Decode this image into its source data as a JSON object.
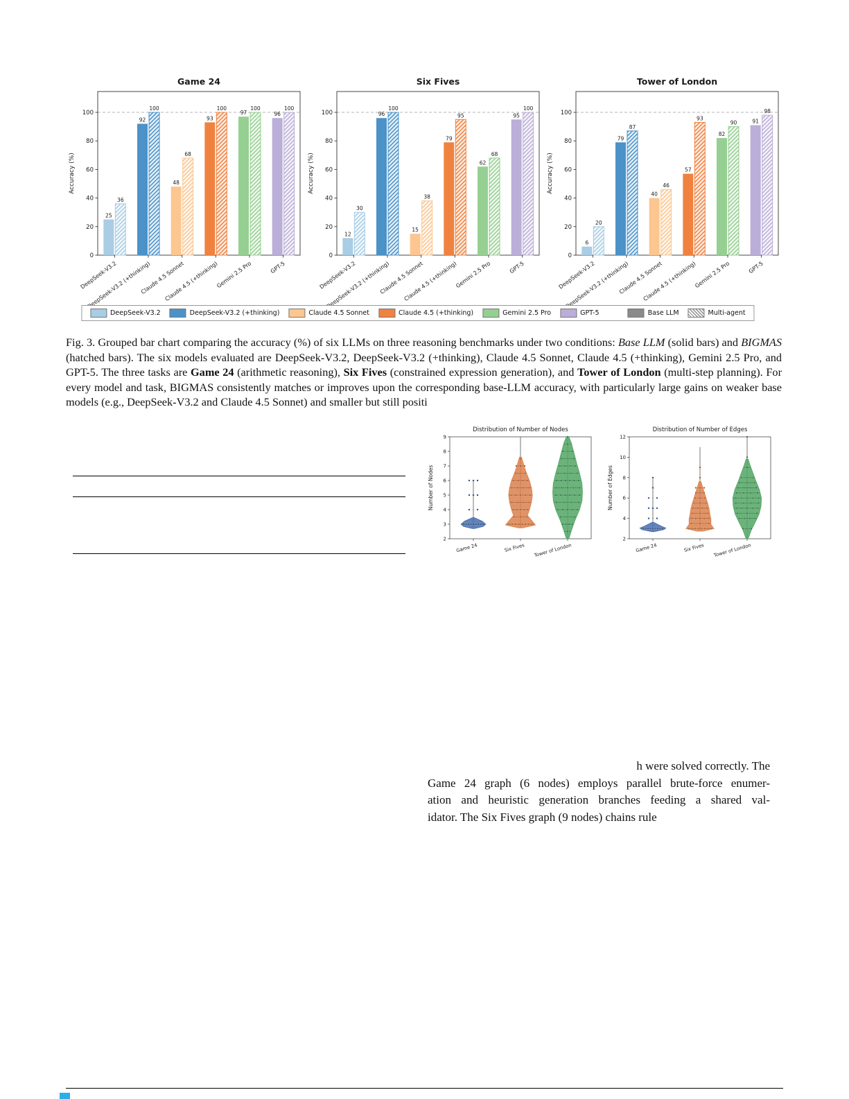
{
  "figure3": {
    "model_colors": [
      "#a8cde4",
      "#4b92c8",
      "#fbc690",
      "#f08240",
      "#96cf92",
      "#bbaed8"
    ],
    "legend": {
      "items": [
        {
          "label": "DeepSeek-V3.2",
          "color": "#a8cde4"
        },
        {
          "label": "DeepSeek-V3.2 (+thinking)",
          "color": "#4b92c8"
        },
        {
          "label": "Claude 4.5 Sonnet",
          "color": "#fbc690"
        },
        {
          "label": "Claude 4.5 (+thinking)",
          "color": "#f08240"
        },
        {
          "label": "Gemini 2.5 Pro",
          "color": "#96cf92"
        },
        {
          "label": "GPT-5",
          "color": "#bbaed8"
        },
        {
          "label": "Base LLM",
          "color": "#8a8a8a"
        },
        {
          "label": "Multi-agent",
          "color": "#8a8a8a",
          "hatched": true
        }
      ]
    },
    "caption_segments": [
      {
        "t": "Fig. 3.   Grouped bar chart comparing the accuracy (%) of six LLMs on three reasoning benchmarks under two conditions: "
      },
      {
        "t": "Base LLM",
        "i": true
      },
      {
        "t": " (solid bars) and "
      },
      {
        "t": "BIGMAS",
        "i": true
      },
      {
        "t": " (hatched bars). The six models evaluated are DeepSeek-V3.2, DeepSeek-V3.2 (+thinking), Claude 4.5 Sonnet, Claude 4.5 (+thinking), Gemini 2.5 Pro, and GPT-5. The three tasks are "
      },
      {
        "t": "Game 24",
        "b": true
      },
      {
        "t": " (arithmetic reasoning), "
      },
      {
        "t": "Six Fives",
        "b": true
      },
      {
        "t": " (constrained expression generation), and "
      },
      {
        "t": "Tower of London",
        "b": true
      },
      {
        "t": " (multi-step planning). For every model and task, BIGMAS consistently matches or improves upon the corresponding base-LLM accuracy, with particularly large gains on weaker base models (e.g., DeepSeek-V3.2 and Claude 4.5 Sonnet) and smaller but still positi"
      }
    ]
  },
  "chart_data": [
    {
      "type": "bar",
      "title": "Game 24",
      "ylabel": "Accuracy (%)",
      "ylim": [
        0,
        115
      ],
      "yticks": [
        0,
        20,
        40,
        60,
        80,
        100
      ],
      "categories": [
        "DeepSeek-V3.2",
        "DeepSeek-V3.2 (+thinking)",
        "Claude 4.5 Sonnet",
        "Claude 4.5 (+thinking)",
        "Gemini 2.5 Pro",
        "GPT-5"
      ],
      "series": [
        {
          "name": "Base LLM",
          "values": [
            25,
            92,
            48,
            93,
            97,
            96
          ]
        },
        {
          "name": "Multi-agent (BIGMAS)",
          "values": [
            36,
            100,
            68,
            100,
            100,
            100
          ]
        }
      ]
    },
    {
      "type": "bar",
      "title": "Six Fives",
      "ylabel": "Accuracy (%)",
      "ylim": [
        0,
        115
      ],
      "yticks": [
        0,
        20,
        40,
        60,
        80,
        100
      ],
      "categories": [
        "DeepSeek-V3.2",
        "DeepSeek-V3.2 (+thinking)",
        "Claude 4.5 Sonnet",
        "Claude 4.5 (+thinking)",
        "Gemini 2.5 Pro",
        "GPT-5"
      ],
      "series": [
        {
          "name": "Base LLM",
          "values": [
            12,
            96,
            15,
            79,
            62,
            95
          ]
        },
        {
          "name": "Multi-agent (BIGMAS)",
          "values": [
            30,
            100,
            38,
            95,
            68,
            100
          ]
        }
      ]
    },
    {
      "type": "bar",
      "title": "Tower of London",
      "ylabel": "Accuracy (%)",
      "ylim": [
        0,
        115
      ],
      "yticks": [
        0,
        20,
        40,
        60,
        80,
        100
      ],
      "categories": [
        "DeepSeek-V3.2",
        "DeepSeek-V3.2 (+thinking)",
        "Claude 4.5 Sonnet",
        "Claude 4.5 (+thinking)",
        "Gemini 2.5 Pro",
        "GPT-5"
      ],
      "series": [
        {
          "name": "Base LLM",
          "values": [
            6,
            79,
            40,
            57,
            82,
            91
          ]
        },
        {
          "name": "Multi-agent (BIGMAS)",
          "values": [
            20,
            87,
            46,
            93,
            90,
            98
          ]
        }
      ]
    },
    {
      "type": "violin",
      "title": "Distribution of Number of Nodes",
      "ylabel": "Number of Nodes",
      "ylim": [
        2,
        9
      ],
      "yticks": [
        2,
        3,
        4,
        5,
        6,
        7,
        8,
        9
      ],
      "categories": [
        "Game 24",
        "Six Fives",
        "Tower of London"
      ],
      "series": [
        {
          "name": "Game 24",
          "whisker": [
            2.7,
            6
          ],
          "profile": [
            [
              2.7,
              0.05
            ],
            [
              2.85,
              0.5
            ],
            [
              3.0,
              0.62
            ],
            [
              3.2,
              0.45
            ],
            [
              3.45,
              0.05
            ]
          ],
          "rows": [
            [
              3,
              9
            ],
            [
              4,
              2
            ],
            [
              5,
              3
            ],
            [
              6,
              3
            ]
          ]
        },
        {
          "name": "Six Fives",
          "whisker": [
            2.75,
            9
          ],
          "profile": [
            [
              2.75,
              0.1
            ],
            [
              2.95,
              0.75
            ],
            [
              3.2,
              0.6
            ],
            [
              3.6,
              0.35
            ],
            [
              4.0,
              0.45
            ],
            [
              4.5,
              0.55
            ],
            [
              5.0,
              0.6
            ],
            [
              5.5,
              0.55
            ],
            [
              6.0,
              0.45
            ],
            [
              6.5,
              0.3
            ],
            [
              7.0,
              0.18
            ],
            [
              7.6,
              0.05
            ]
          ],
          "rows": [
            [
              3,
              8
            ],
            [
              3.5,
              3
            ],
            [
              4,
              5
            ],
            [
              4.5,
              4
            ],
            [
              5,
              5
            ],
            [
              5.5,
              4
            ],
            [
              6,
              4
            ],
            [
              6.5,
              2
            ],
            [
              7,
              3
            ],
            [
              7.5,
              1
            ]
          ]
        },
        {
          "name": "Tower of London",
          "whisker": [
            2,
            9
          ],
          "profile": [
            [
              2.0,
              0.06
            ],
            [
              2.6,
              0.2
            ],
            [
              3.2,
              0.35
            ],
            [
              4.0,
              0.6
            ],
            [
              4.6,
              0.72
            ],
            [
              5.2,
              0.75
            ],
            [
              5.8,
              0.72
            ],
            [
              6.5,
              0.6
            ],
            [
              7.2,
              0.45
            ],
            [
              8.0,
              0.3
            ],
            [
              8.6,
              0.18
            ],
            [
              9.0,
              0.06
            ]
          ],
          "rows": [
            [
              2.5,
              1
            ],
            [
              3,
              4
            ],
            [
              3.5,
              2
            ],
            [
              4,
              5
            ],
            [
              4.5,
              4
            ],
            [
              5,
              6
            ],
            [
              5.5,
              5
            ],
            [
              6,
              6
            ],
            [
              6.5,
              4
            ],
            [
              7,
              4
            ],
            [
              7.5,
              2
            ],
            [
              8,
              2
            ],
            [
              8.5,
              1
            ],
            [
              9,
              1
            ]
          ]
        }
      ]
    },
    {
      "type": "violin",
      "title": "Distribution of Number of Edges",
      "ylabel": "Number of Edges",
      "ylim": [
        2,
        12
      ],
      "yticks": [
        2,
        4,
        6,
        8,
        10,
        12
      ],
      "categories": [
        "Game 24",
        "Six Fives",
        "Tower of London"
      ],
      "series": [
        {
          "name": "Game 24",
          "whisker": [
            2.7,
            8
          ],
          "profile": [
            [
              2.7,
              0.05
            ],
            [
              2.9,
              0.55
            ],
            [
              3.05,
              0.65
            ],
            [
              3.25,
              0.4
            ],
            [
              3.6,
              0.05
            ]
          ],
          "rows": [
            [
              3,
              9
            ],
            [
              4,
              2
            ],
            [
              5,
              3
            ],
            [
              6,
              2
            ],
            [
              7,
              1
            ],
            [
              8,
              1
            ]
          ]
        },
        {
          "name": "Six Fives",
          "whisker": [
            2.75,
            11
          ],
          "profile": [
            [
              2.75,
              0.15
            ],
            [
              3.0,
              0.7
            ],
            [
              3.4,
              0.55
            ],
            [
              3.9,
              0.55
            ],
            [
              4.4,
              0.5
            ],
            [
              5.0,
              0.45
            ],
            [
              5.5,
              0.38
            ],
            [
              6.0,
              0.3
            ],
            [
              6.5,
              0.22
            ],
            [
              7.0,
              0.14
            ],
            [
              7.6,
              0.05
            ]
          ],
          "rows": [
            [
              3,
              8
            ],
            [
              3.5,
              3
            ],
            [
              4,
              5
            ],
            [
              4.5,
              3
            ],
            [
              5,
              4
            ],
            [
              5.5,
              3
            ],
            [
              6,
              3
            ],
            [
              6.5,
              2
            ],
            [
              7,
              2
            ],
            [
              8,
              1
            ],
            [
              9,
              1
            ]
          ]
        },
        {
          "name": "Tower of London",
          "whisker": [
            2,
            12
          ],
          "profile": [
            [
              2.0,
              0.05
            ],
            [
              2.8,
              0.2
            ],
            [
              3.6,
              0.4
            ],
            [
              4.4,
              0.6
            ],
            [
              5.2,
              0.7
            ],
            [
              6.0,
              0.72
            ],
            [
              6.8,
              0.62
            ],
            [
              7.6,
              0.45
            ],
            [
              8.4,
              0.3
            ],
            [
              9.2,
              0.15
            ],
            [
              9.8,
              0.05
            ]
          ],
          "rows": [
            [
              3,
              2
            ],
            [
              4,
              4
            ],
            [
              4.5,
              3
            ],
            [
              5,
              5
            ],
            [
              5.5,
              4
            ],
            [
              6,
              5
            ],
            [
              6.5,
              4
            ],
            [
              7,
              4
            ],
            [
              7.5,
              2
            ],
            [
              8,
              2
            ],
            [
              9,
              1
            ],
            [
              10,
              1
            ],
            [
              12,
              1
            ]
          ]
        }
      ]
    }
  ],
  "violin_colors": [
    {
      "fill": "#4c72b0",
      "dark": "#2f4f84"
    },
    {
      "fill": "#dd8452",
      "dark": "#ad5a1c"
    },
    {
      "fill": "#55a868",
      "dark": "#356e42"
    }
  ],
  "body_text": {
    "lines": [
      "h were solved correctly. The",
      "Game 24 graph (6 nodes) employs parallel brute-force enumer-",
      "ation and heuristic generation branches feeding a shared val-",
      "idator. The Six Fives graph (9 nodes) chains rule"
    ]
  }
}
